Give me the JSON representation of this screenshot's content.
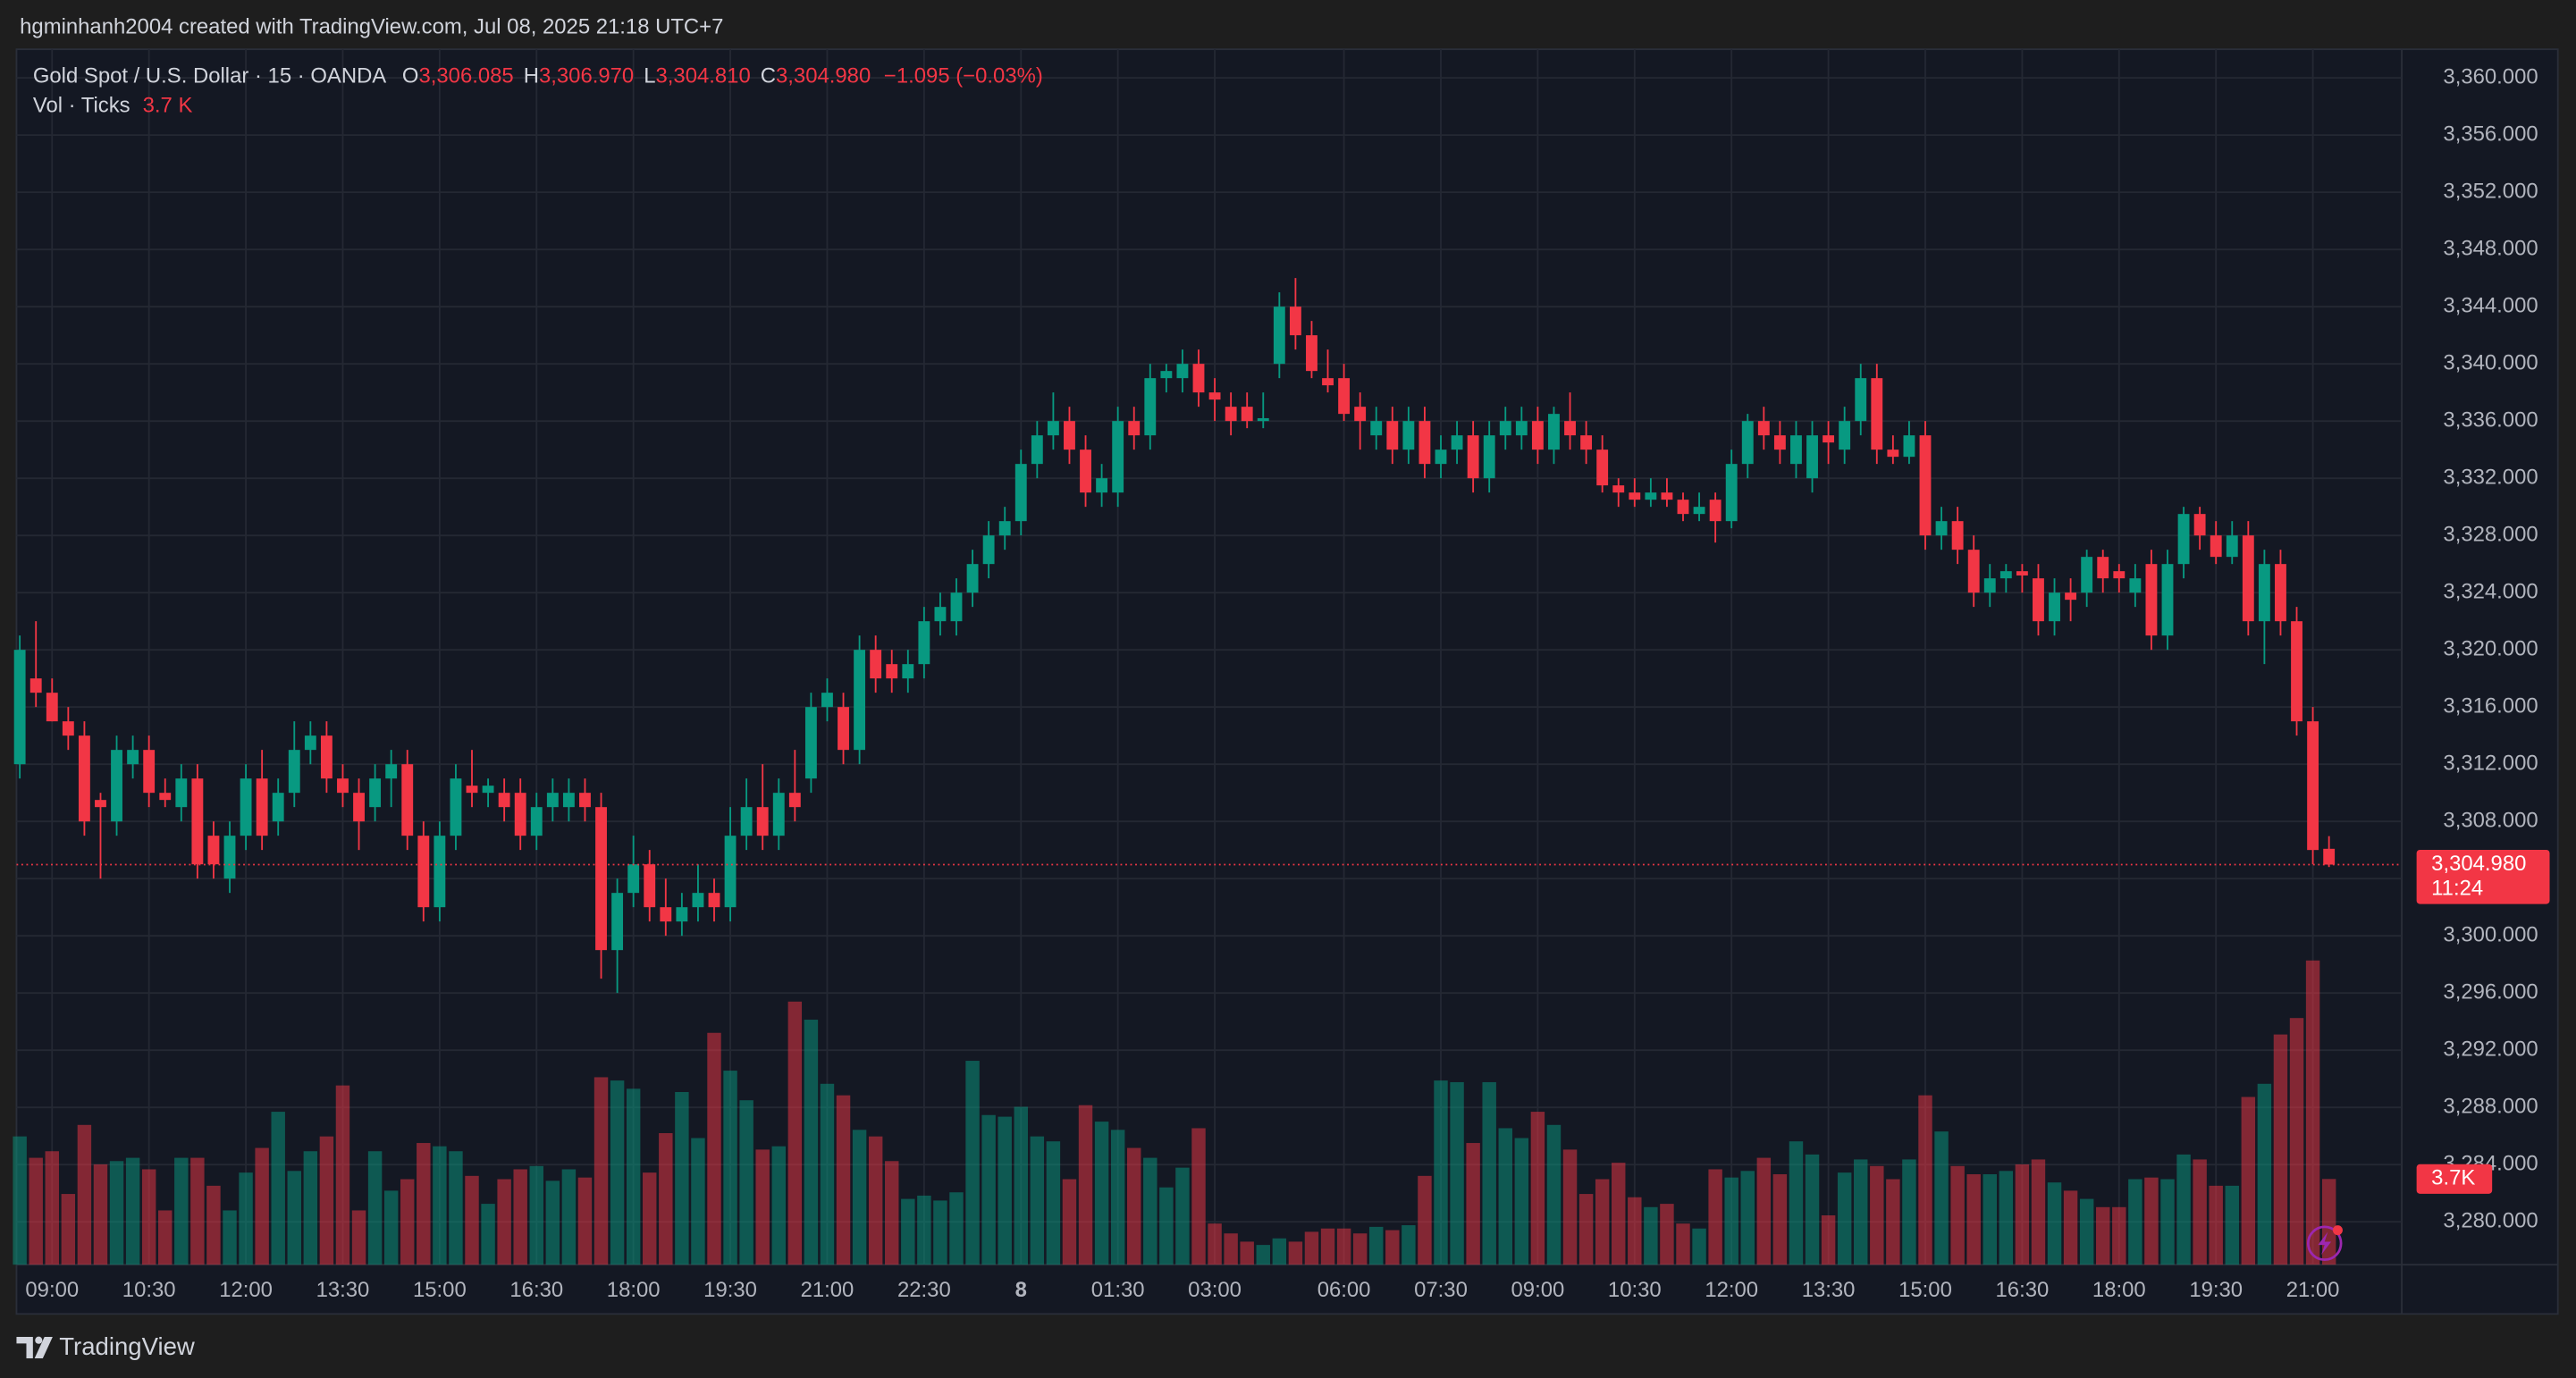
{
  "chart_data": {
    "type": "candlestick",
    "header": "hgminhanh2004 created with TradingView.com, Jul 08, 2025 21:18 UTC+7",
    "symbol": "Gold Spot / U.S. Dollar · 15 · OANDA",
    "ohlc_legend": [
      {
        "key": "O",
        "label": "3,306.085"
      },
      {
        "key": "H",
        "label": "3,306.970"
      },
      {
        "key": "L",
        "label": "3,304.810"
      },
      {
        "key": "C",
        "label": "3,304.980"
      }
    ],
    "change": "−1.095 (−0.03%)",
    "volume_title": "Vol · Ticks",
    "volume_legend_label": "3.7 K",
    "last_price_label": "3,304.980",
    "countdown": "11:24",
    "volume_label": "3.7K",
    "brand": "TradingView",
    "up_color": "#089981",
    "down_color": "#f23645",
    "grid": true,
    "ylim": [
      3277,
      3362
    ],
    "yticks": [
      {
        "value": 3360,
        "label": "3,360.000"
      },
      {
        "value": 3356,
        "label": "3,356.000"
      },
      {
        "value": 3352,
        "label": "3,352.000"
      },
      {
        "value": 3348,
        "label": "3,348.000"
      },
      {
        "value": 3344,
        "label": "3,344.000"
      },
      {
        "value": 3340,
        "label": "3,340.000"
      },
      {
        "value": 3336,
        "label": "3,336.000"
      },
      {
        "value": 3332,
        "label": "3,332.000"
      },
      {
        "value": 3328,
        "label": "3,328.000"
      },
      {
        "value": 3324,
        "label": "3,324.000"
      },
      {
        "value": 3320,
        "label": "3,320.000"
      },
      {
        "value": 3316,
        "label": "3,316.000"
      },
      {
        "value": 3312,
        "label": "3,312.000"
      },
      {
        "value": 3308,
        "label": "3,308.000"
      },
      {
        "value": 3304,
        "label": "3,304.000"
      },
      {
        "value": 3300,
        "label": "3,300.000"
      },
      {
        "value": 3296,
        "label": "3,296.000"
      },
      {
        "value": 3292,
        "label": "3,292.000"
      },
      {
        "value": 3288,
        "label": "3,288.000"
      },
      {
        "value": 3284,
        "label": "3,284.000"
      },
      {
        "value": 3280,
        "label": "3,280.000"
      }
    ],
    "volume_ylim": [
      0,
      20000
    ],
    "categories": [
      null,
      null,
      "09:00",
      null,
      null,
      null,
      null,
      null,
      "10:30",
      null,
      null,
      null,
      null,
      null,
      "12:00",
      null,
      null,
      null,
      null,
      null,
      "13:30",
      null,
      null,
      null,
      null,
      null,
      "15:00",
      null,
      null,
      null,
      null,
      null,
      "16:30",
      null,
      null,
      null,
      null,
      null,
      "18:00",
      null,
      null,
      null,
      null,
      null,
      "19:30",
      null,
      null,
      null,
      null,
      null,
      "21:00",
      null,
      null,
      null,
      null,
      null,
      "22:30",
      null,
      null,
      null,
      null,
      null,
      "8",
      null,
      null,
      null,
      null,
      null,
      "01:30",
      null,
      null,
      null,
      null,
      null,
      "03:00",
      null,
      null,
      null,
      null,
      null,
      null,
      null,
      "06:00",
      null,
      null,
      null,
      null,
      null,
      "07:30",
      null,
      null,
      null,
      null,
      null,
      "09:00",
      null,
      null,
      null,
      null,
      null,
      "10:30",
      null,
      null,
      null,
      null,
      null,
      "12:00",
      null,
      null,
      null,
      null,
      null,
      "13:30",
      null,
      null,
      null,
      null,
      null,
      "15:00",
      null,
      null,
      null,
      null,
      null,
      "16:30",
      null,
      null,
      null,
      null,
      null,
      "18:00",
      null,
      null,
      null,
      null,
      null,
      "19:30",
      null,
      null,
      null,
      null,
      null,
      "21:00",
      null
    ],
    "open": [
      3312,
      3318,
      3317,
      3315,
      3314,
      3309.5,
      3308,
      3312,
      3313,
      3310,
      3309,
      3311,
      3307,
      3304,
      3307,
      3311,
      3308,
      3310,
      3313,
      3314,
      3311,
      3310,
      3309,
      3311,
      3312,
      3307,
      3302,
      3307,
      3310.5,
      3310,
      3310,
      3310,
      3307,
      3309,
      3309,
      3310,
      3309,
      3299,
      3303,
      3305,
      3302,
      3301,
      3302,
      3303,
      3302,
      3307,
      3309,
      3307,
      3310,
      3311,
      3316,
      3316,
      3313,
      3320,
      3319,
      3318,
      3319,
      3322,
      3322,
      3324,
      3326,
      3328,
      3329,
      3333,
      3335,
      3336,
      3334,
      3331,
      3331,
      3336,
      3335,
      3339,
      3339,
      3340,
      3338,
      3337,
      3337,
      3336,
      3340,
      3344,
      3342,
      3339,
      3339,
      3337,
      3335,
      3336,
      3334,
      3336,
      3333,
      3334,
      3335,
      3332,
      3335,
      3335,
      3336,
      3334,
      3336,
      3335,
      3334,
      3331.5,
      3331,
      3330.5,
      3331,
      3330.5,
      3329.5,
      3330.5,
      3329,
      3333,
      3336,
      3335,
      3333,
      3332,
      3335,
      3334,
      3336,
      3339,
      3334,
      3333.5,
      3335,
      3328,
      3329,
      3327,
      3324,
      3325,
      3325.5,
      3325,
      3322,
      3324,
      3324,
      3326.5,
      3325.5,
      3324,
      3326,
      3321,
      3326,
      3329.5,
      3328,
      3326.5,
      3328,
      3322,
      3326,
      3322,
      3315,
      3306.085
    ],
    "high": [
      3321,
      3322,
      3318,
      3316,
      3315,
      3310,
      3314,
      3314,
      3314,
      3311,
      3312,
      3312,
      3308,
      3308,
      3312,
      3313,
      3311,
      3315,
      3315,
      3315,
      3312,
      3311,
      3312,
      3313,
      3313,
      3308,
      3308,
      3312,
      3313,
      3311,
      3311,
      3311,
      3310,
      3311,
      3311,
      3311,
      3310,
      3304,
      3307,
      3306,
      3304,
      3303,
      3305,
      3304,
      3309,
      3311,
      3312,
      3311,
      3313,
      3317,
      3318,
      3317,
      3321,
      3321,
      3320,
      3320,
      3323,
      3324,
      3325,
      3327,
      3329,
      3330,
      3334,
      3336,
      3338,
      3337,
      3335,
      3333,
      3337,
      3337,
      3340,
      3340,
      3341,
      3341,
      3339,
      3338,
      3338,
      3338,
      3345,
      3346,
      3343,
      3341,
      3340,
      3338,
      3337,
      3337,
      3337,
      3337,
      3335,
      3336,
      3336,
      3336,
      3337,
      3337,
      3337,
      3337,
      3338,
      3336,
      3335,
      3332,
      3332,
      3332,
      3332,
      3331,
      3331,
      3331,
      3334,
      3336.5,
      3337,
      3336,
      3336,
      3336,
      3336,
      3337,
      3340,
      3340,
      3335,
      3336,
      3336,
      3330,
      3330,
      3328,
      3326,
      3326,
      3326,
      3326,
      3325,
      3325,
      3327,
      3327,
      3326,
      3326,
      3327,
      3327,
      3330,
      3330,
      3329,
      3329,
      3329,
      3327,
      3327,
      3323,
      3316,
      3306.97
    ],
    "low": [
      3311,
      3316,
      3315,
      3313,
      3307,
      3304,
      3307,
      3311,
      3309,
      3309,
      3308,
      3304,
      3304,
      3303,
      3306,
      3306,
      3307,
      3309,
      3312,
      3310,
      3309,
      3306,
      3308,
      3309,
      3306,
      3301,
      3301,
      3306,
      3309,
      3309,
      3308,
      3306,
      3306,
      3308,
      3308,
      3308,
      3297,
      3296,
      3302,
      3301,
      3300,
      3300,
      3301,
      3301,
      3301,
      3306,
      3306,
      3306,
      3308,
      3310,
      3315,
      3312,
      3312,
      3317,
      3317,
      3317,
      3318,
      3321,
      3321,
      3323,
      3325,
      3327,
      3328,
      3332,
      3334,
      3333,
      3330,
      3330,
      3330,
      3334,
      3334,
      3338,
      3338,
      3337,
      3336,
      3335,
      3335.5,
      3335.5,
      3339,
      3341,
      3339,
      3338,
      3336,
      3334,
      3334,
      3333,
      3333,
      3332,
      3332,
      3333,
      3331,
      3331,
      3334,
      3334,
      3333,
      3333,
      3334,
      3333,
      3331,
      3330,
      3330,
      3330,
      3330,
      3329,
      3329,
      3327.5,
      3328.5,
      3332,
      3334,
      3333,
      3332,
      3331,
      3333,
      3333,
      3335,
      3333,
      3333,
      3333,
      3327,
      3327,
      3326,
      3323,
      3323,
      3324,
      3324,
      3321,
      3321,
      3322,
      3323,
      3324,
      3324,
      3323,
      3320,
      3320,
      3325,
      3327,
      3326,
      3326,
      3321,
      3319,
      3321,
      3314,
      3305,
      3304.81
    ],
    "close": [
      3320,
      3317,
      3315,
      3314,
      3308,
      3309,
      3313,
      3313,
      3310,
      3309.5,
      3311,
      3305,
      3305,
      3307,
      3311,
      3307,
      3310,
      3313,
      3314,
      3311,
      3310,
      3308,
      3311,
      3312,
      3307,
      3302,
      3307,
      3311,
      3310,
      3310.5,
      3309,
      3307,
      3309,
      3310,
      3310,
      3309,
      3299,
      3303,
      3305,
      3302,
      3301,
      3302,
      3303,
      3302,
      3307,
      3309,
      3307,
      3310,
      3309,
      3316,
      3317,
      3313,
      3320,
      3318,
      3318,
      3319,
      3322,
      3323,
      3324,
      3326,
      3328,
      3329,
      3333,
      3335,
      3336,
      3334,
      3331,
      3332,
      3336,
      3335,
      3339,
      3339.5,
      3340,
      3338,
      3337.5,
      3336,
      3336,
      3336.2,
      3344,
      3342,
      3339.5,
      3338.5,
      3336.5,
      3336,
      3336,
      3334,
      3336,
      3333,
      3334,
      3335,
      3332,
      3335,
      3336,
      3336,
      3334,
      3336.5,
      3335,
      3334,
      3331.5,
      3331,
      3330.5,
      3331,
      3330.5,
      3329.5,
      3330,
      3329,
      3333,
      3336,
      3335,
      3334,
      3335,
      3335,
      3334.5,
      3336,
      3339,
      3334,
      3333.5,
      3335,
      3328,
      3329,
      3327,
      3324,
      3325,
      3325.5,
      3325.2,
      3322,
      3324,
      3323.5,
      3326.5,
      3325,
      3325,
      3325,
      3321,
      3326,
      3329.5,
      3328,
      3326.5,
      3328,
      3322,
      3326,
      3322,
      3315,
      3306,
      3304.98
    ],
    "volume": [
      5538,
      4615,
      4899,
      3053,
      6035,
      4331,
      4473,
      4615,
      4118,
      2343,
      4615,
      4615,
      3408,
      2343,
      3976,
      5041,
      6603,
      4047,
      4899,
      5538,
      7739,
      2343,
      4899,
      3195,
      3692,
      5254,
      5112,
      4899,
      3834,
      2627,
      3692,
      4118,
      4260,
      3621,
      4118,
      3763,
      8094,
      7952,
      7597,
      3976,
      5680,
      7455,
      5467,
      10011,
      8378,
      7100,
      4970,
      5112,
      11360,
      10579,
      7810,
      7313,
      5822,
      5538,
      4473,
      2840,
      2982,
      2769,
      3124,
      8804,
      6461,
      6390,
      6816,
      5538,
      5325,
      3692,
      6887,
      6177,
      5822,
      5041,
      4615,
      3337,
      4189,
      5893,
      1775,
      1349,
      994,
      852,
      1136,
      994,
      1420,
      1562,
      1562,
      1349,
      1633,
      1491,
      1704,
      3834,
      7952,
      7881,
      5254,
      7881,
      5893,
      5467,
      6603,
      6035,
      4970,
      3053,
      3692,
      4402,
      2911,
      2485,
      2627,
      1775,
      1562,
      4118,
      3763,
      4047,
      4615,
      3905,
      5325,
      4757,
      2130,
      3976,
      4544,
      4260,
      3692,
      4544,
      7313,
      5751,
      4260,
      3905,
      3905,
      4047,
      4331,
      4544,
      3550,
      3195,
      2840,
      2485,
      2485,
      3692,
      3763,
      3692,
      4757,
      4544,
      3408,
      3408,
      7242,
      7810,
      9940,
      10650,
      13135,
      3700
    ]
  }
}
